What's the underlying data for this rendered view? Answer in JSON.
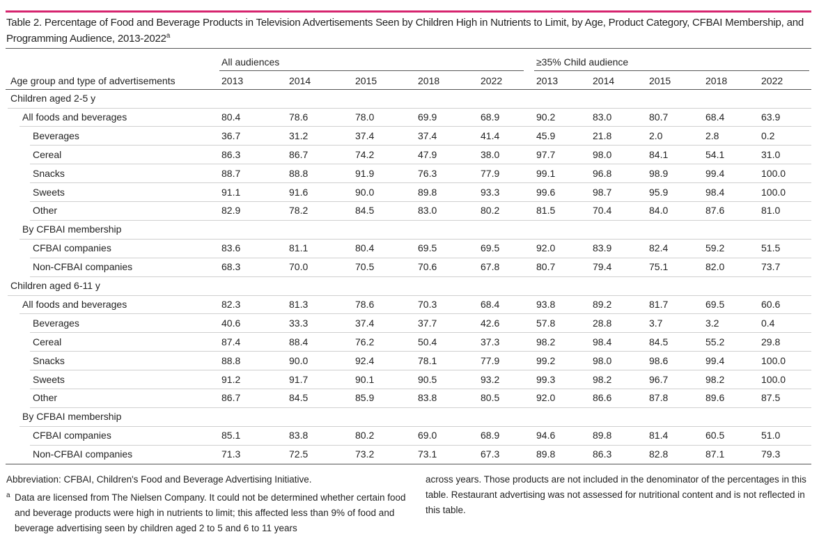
{
  "header": {
    "title": "Table 2. Percentage of Food and Beverage Products in Television Advertisements Seen by Children High in Nutrients to Limit, by Age, Product Category, CFBAI Membership, and Programming Audience, 2013-2022",
    "title_marker": "a"
  },
  "table": {
    "row_header": "Age group and type of advertisements",
    "column_groups": [
      {
        "label": "All audiences",
        "columns": [
          "2013",
          "2014",
          "2015",
          "2018",
          "2022"
        ]
      },
      {
        "label": "≥35% Child audience",
        "columns": [
          "2013",
          "2014",
          "2015",
          "2018",
          "2022"
        ]
      }
    ],
    "sections": [
      {
        "label": "Children aged 2-5 y",
        "groups": [
          {
            "label": "All foods and beverages",
            "values": [
              "80.4",
              "78.6",
              "78.0",
              "69.9",
              "68.9",
              "90.2",
              "83.0",
              "80.7",
              "68.4",
              "63.9"
            ],
            "rows": [
              {
                "label": "Beverages",
                "values": [
                  "36.7",
                  "31.2",
                  "37.4",
                  "37.4",
                  "41.4",
                  "45.9",
                  "21.8",
                  "2.0",
                  "2.8",
                  "0.2"
                ]
              },
              {
                "label": "Cereal",
                "values": [
                  "86.3",
                  "86.7",
                  "74.2",
                  "47.9",
                  "38.0",
                  "97.7",
                  "98.0",
                  "84.1",
                  "54.1",
                  "31.0"
                ]
              },
              {
                "label": "Snacks",
                "values": [
                  "88.7",
                  "88.8",
                  "91.9",
                  "76.3",
                  "77.9",
                  "99.1",
                  "96.8",
                  "98.9",
                  "99.4",
                  "100.0"
                ]
              },
              {
                "label": "Sweets",
                "values": [
                  "91.1",
                  "91.6",
                  "90.0",
                  "89.8",
                  "93.3",
                  "99.6",
                  "98.7",
                  "95.9",
                  "98.4",
                  "100.0"
                ]
              },
              {
                "label": "Other",
                "values": [
                  "82.9",
                  "78.2",
                  "84.5",
                  "83.0",
                  "80.2",
                  "81.5",
                  "70.4",
                  "84.0",
                  "87.6",
                  "81.0"
                ]
              }
            ]
          },
          {
            "label": "By CFBAI membership",
            "rows": [
              {
                "label": "CFBAI companies",
                "values": [
                  "83.6",
                  "81.1",
                  "80.4",
                  "69.5",
                  "69.5",
                  "92.0",
                  "83.9",
                  "82.4",
                  "59.2",
                  "51.5"
                ]
              },
              {
                "label": "Non-CFBAI companies",
                "values": [
                  "68.3",
                  "70.0",
                  "70.5",
                  "70.6",
                  "67.8",
                  "80.7",
                  "79.4",
                  "75.1",
                  "82.0",
                  "73.7"
                ]
              }
            ]
          }
        ]
      },
      {
        "label": "Children aged 6-11 y",
        "groups": [
          {
            "label": "All foods and beverages",
            "values": [
              "82.3",
              "81.3",
              "78.6",
              "70.3",
              "68.4",
              "93.8",
              "89.2",
              "81.7",
              "69.5",
              "60.6"
            ],
            "rows": [
              {
                "label": "Beverages",
                "values": [
                  "40.6",
                  "33.3",
                  "37.4",
                  "37.7",
                  "42.6",
                  "57.8",
                  "28.8",
                  "3.7",
                  "3.2",
                  "0.4"
                ]
              },
              {
                "label": "Cereal",
                "values": [
                  "87.4",
                  "88.4",
                  "76.2",
                  "50.4",
                  "37.3",
                  "98.2",
                  "98.4",
                  "84.5",
                  "55.2",
                  "29.8"
                ]
              },
              {
                "label": "Snacks",
                "values": [
                  "88.8",
                  "90.0",
                  "92.4",
                  "78.1",
                  "77.9",
                  "99.2",
                  "98.0",
                  "98.6",
                  "99.4",
                  "100.0"
                ]
              },
              {
                "label": "Sweets",
                "values": [
                  "91.2",
                  "91.7",
                  "90.1",
                  "90.5",
                  "93.2",
                  "99.3",
                  "98.2",
                  "96.7",
                  "98.2",
                  "100.0"
                ]
              },
              {
                "label": "Other",
                "values": [
                  "86.7",
                  "84.5",
                  "85.9",
                  "83.8",
                  "80.5",
                  "92.0",
                  "86.6",
                  "87.8",
                  "89.6",
                  "87.5"
                ]
              }
            ]
          },
          {
            "label": "By CFBAI membership",
            "rows": [
              {
                "label": "CFBAI companies",
                "values": [
                  "85.1",
                  "83.8",
                  "80.2",
                  "69.0",
                  "68.9",
                  "94.6",
                  "89.8",
                  "81.4",
                  "60.5",
                  "51.0"
                ]
              },
              {
                "label": "Non-CFBAI companies",
                "values": [
                  "71.3",
                  "72.5",
                  "73.2",
                  "73.1",
                  "67.3",
                  "89.8",
                  "86.3",
                  "82.8",
                  "87.1",
                  "79.3"
                ]
              }
            ]
          }
        ]
      }
    ]
  },
  "footer": {
    "abbreviation": "Abbreviation: CFBAI, Children's Food and Beverage Advertising Initiative.",
    "footnote_marker": "a",
    "footnote_text": [
      "Data are licensed from The Nielsen Company. It could not be determined whether certain food and beverage products were high in nutrients to limit; this affected less than 9% of food and beverage advertising seen by children aged 2 to 5 and 6 to 11 years",
      "across years. Those products are not included in the denominator of the percentages in this table. Restaurant advertising was not assessed for nutritional content and is not reflected in this table."
    ]
  }
}
